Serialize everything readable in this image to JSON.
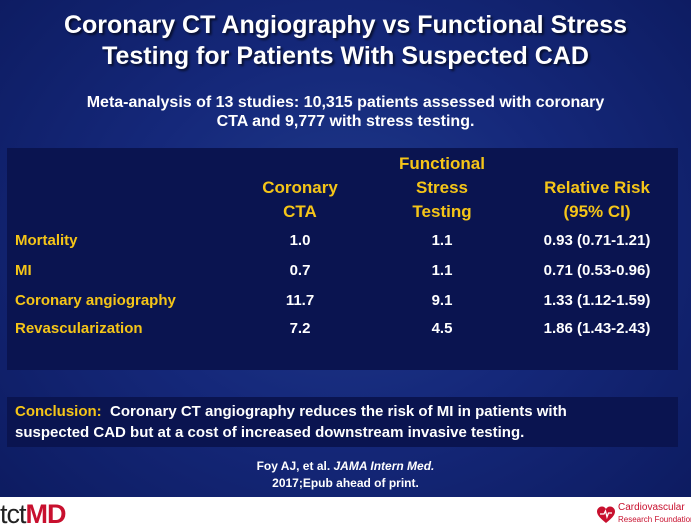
{
  "title_line1": "Coronary CT Angiography vs Functional Stress",
  "title_line2": "Testing for Patients With Suspected CAD",
  "subtitle_line1": "Meta-analysis of 13 studies: 10,315 patients assessed with coronary",
  "subtitle_line2": "CTA and 9,777 with stress testing.",
  "table": {
    "headers": {
      "col1_line1": "Coronary",
      "col1_line2": "CTA",
      "col2_line1": "Functional",
      "col2_line2": "Stress",
      "col2_line3": "Testing",
      "col3_line1": "Relative Risk",
      "col3_line2": "(95% CI)"
    },
    "rows": [
      {
        "label": "Mortality",
        "cta": "1.0",
        "stress": "1.1",
        "rr": "0.93 (0.71-1.21)"
      },
      {
        "label": "MI",
        "cta": "0.7",
        "stress": "1.1",
        "rr": "0.71 (0.53-0.96)"
      },
      {
        "label": "Coronary angiography",
        "cta": "11.7",
        "stress": "9.1",
        "rr": "1.33 (1.12-1.59)"
      },
      {
        "label": "Revascularization",
        "cta": "7.2",
        "stress": "4.5",
        "rr": "1.86 (1.43-2.43)"
      }
    ]
  },
  "conclusion": {
    "label": "Conclusion:",
    "text_line1": "  Coronary CT angiography reduces the risk of MI in patients with",
    "text_line2": "suspected CAD but at a cost of increased downstream invasive testing."
  },
  "citation": {
    "authors": "Foy AJ, et al. ",
    "journal": "JAMA Intern Med.",
    "line2": "2017;Epub ahead of print."
  },
  "footer": {
    "logo_tct": "tct",
    "logo_md": "MD",
    "crf_line1": "Cardiovascular",
    "crf_line2": "Research Foundation"
  },
  "colors": {
    "background": "#15287a",
    "table_background": "#0a1450",
    "accent_yellow": "#f5c518",
    "logo_red": "#c8102e"
  }
}
